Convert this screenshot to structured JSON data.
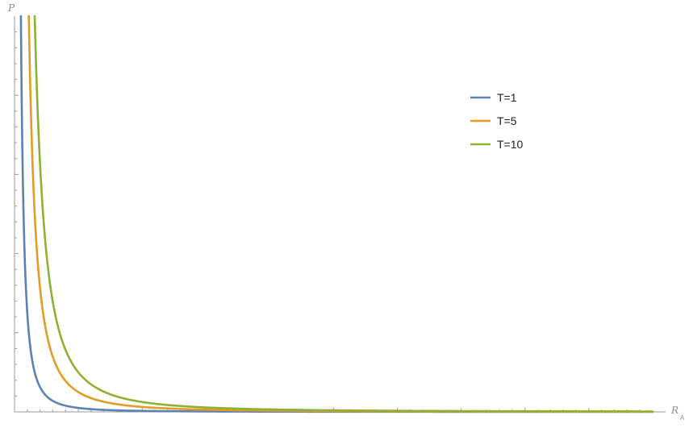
{
  "chart_data": {
    "type": "line",
    "xlabel": "R",
    "xlabel_subscript": "A",
    "ylabel": "P",
    "x_range": [
      0,
      10
    ],
    "y_range": [
      0,
      100
    ],
    "grid": false,
    "legend_position": "top-right",
    "curve_formula": "P = T / R_A^2",
    "series": [
      {
        "name": "T=1",
        "T": 1,
        "color": "#5E81B5"
      },
      {
        "name": "T=5",
        "T": 5,
        "color": "#E19C24"
      },
      {
        "name": "T=10",
        "T": 10,
        "color": "#8FB032"
      }
    ]
  }
}
